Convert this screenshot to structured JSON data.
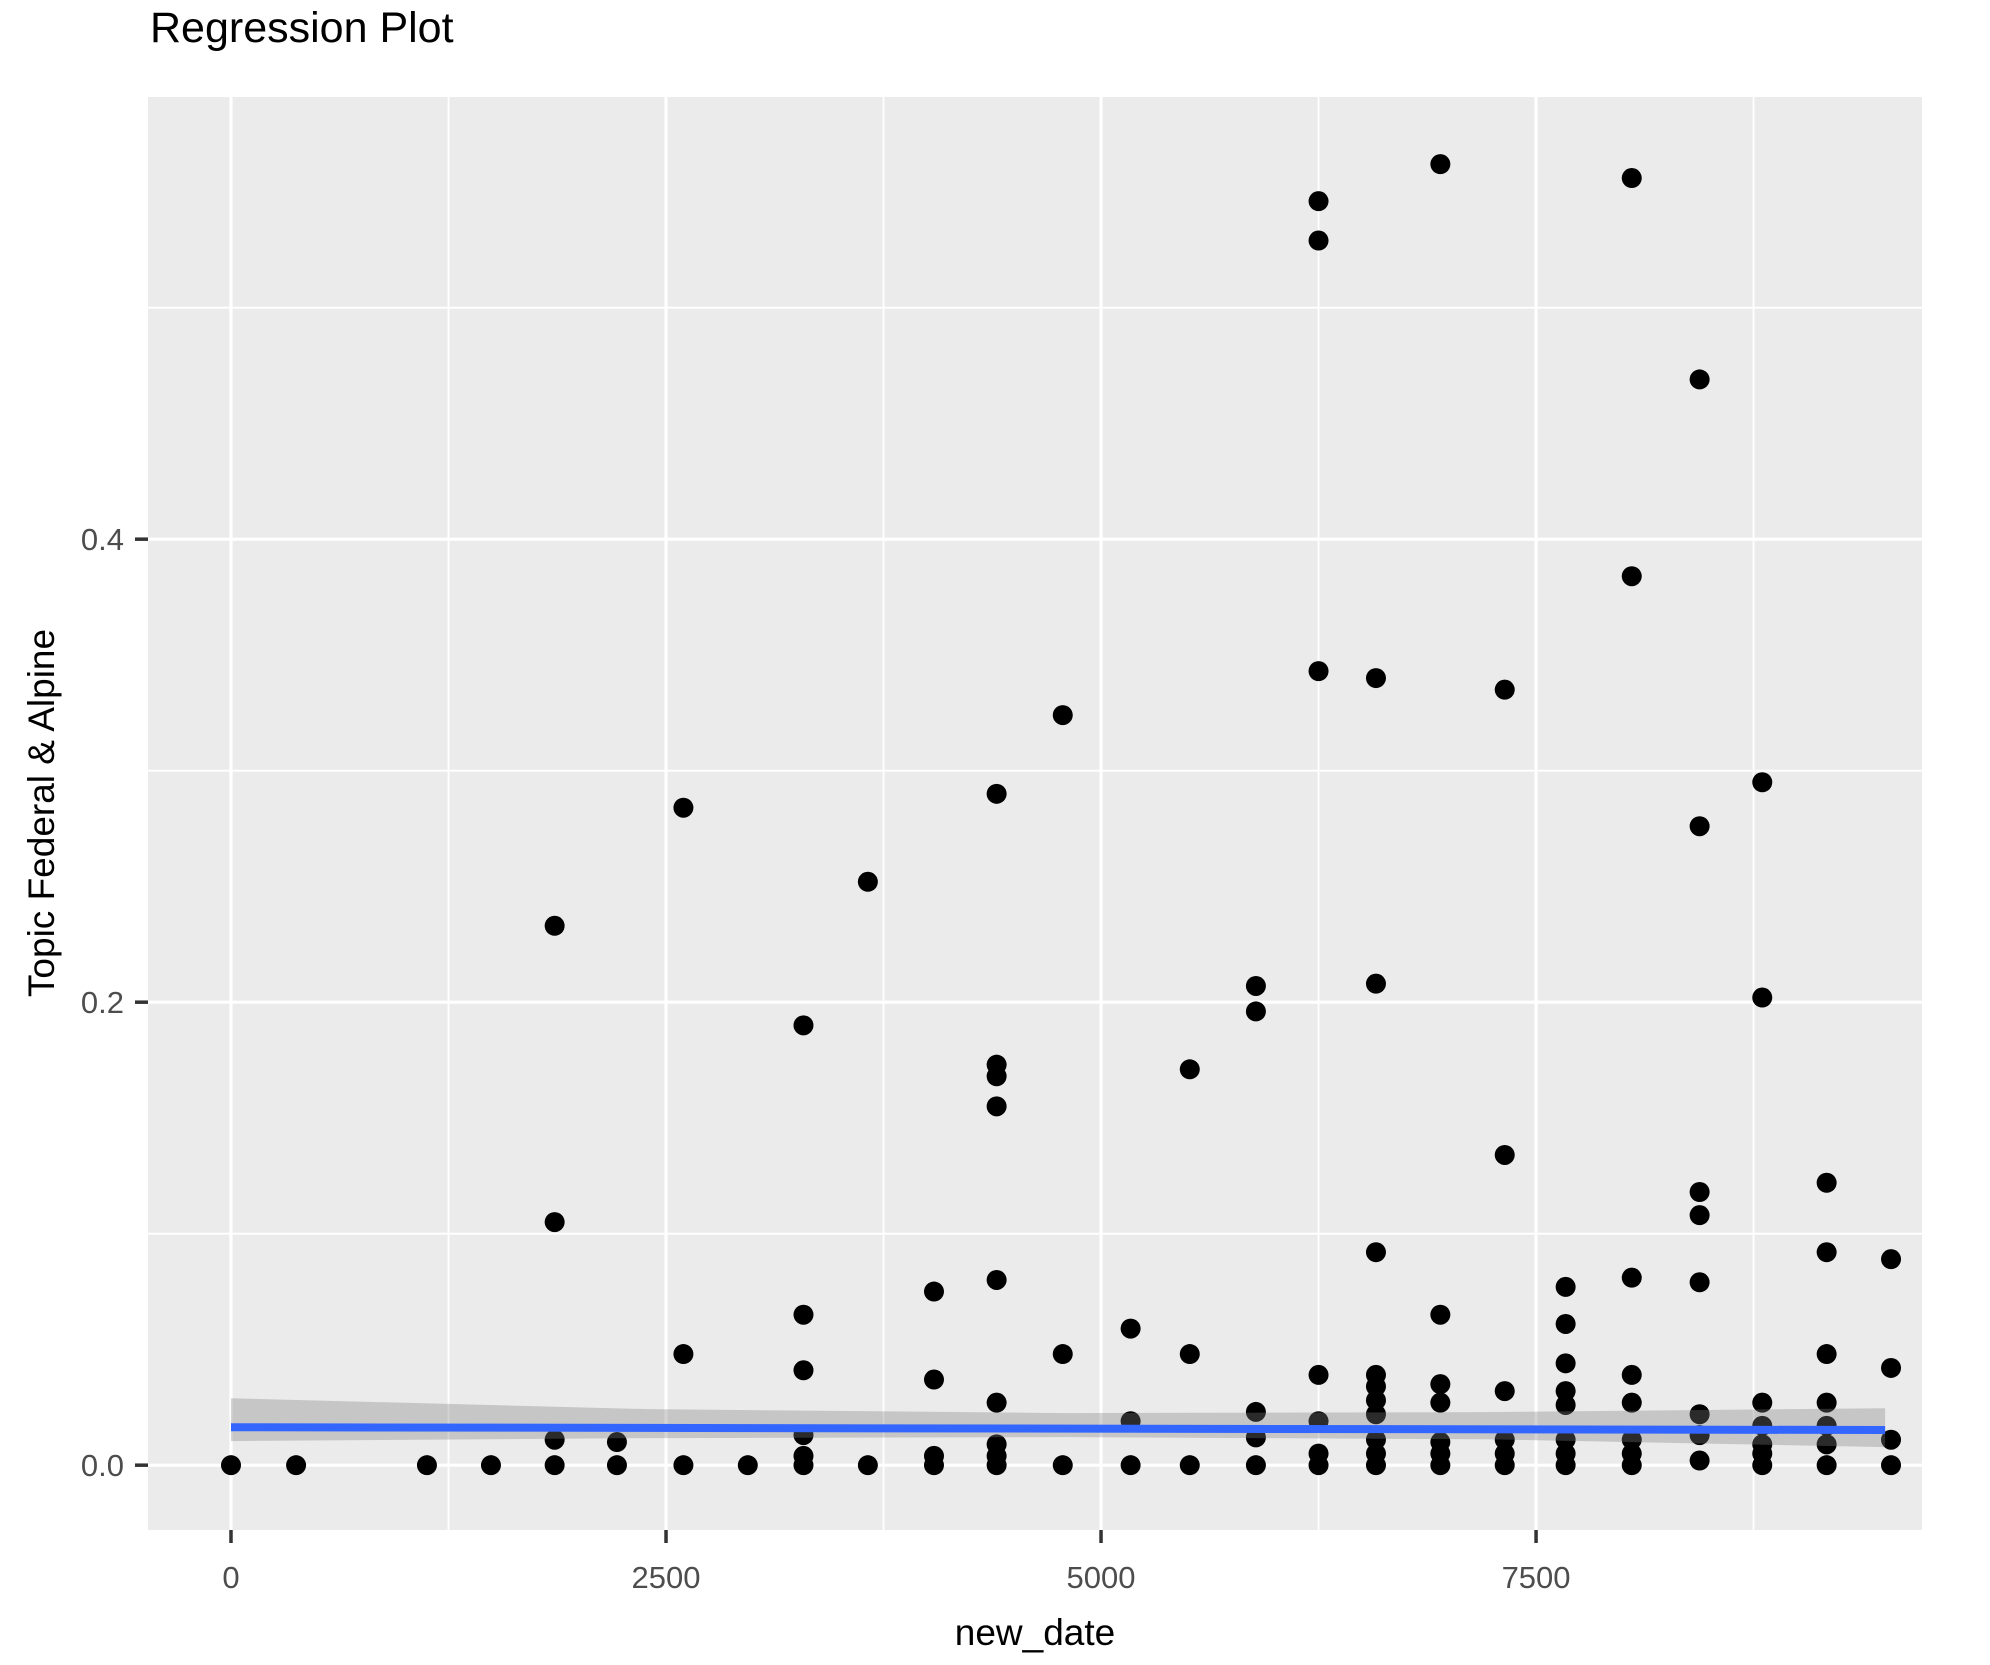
{
  "header": {
    "title": "Regression Plot"
  },
  "chart_data": {
    "type": "scatter",
    "title": "Regression Plot",
    "xlabel": "new_date",
    "ylabel": "Topic Federal & Alpine",
    "legend_position": "none",
    "grid": true,
    "xlim": [
      -477,
      9718
    ],
    "ylim": [
      -0.028,
      0.591
    ],
    "x_ticks": [
      {
        "value": 0,
        "label": "0"
      },
      {
        "value": 2500,
        "label": "2500"
      },
      {
        "value": 5000,
        "label": "5000"
      },
      {
        "value": 7500,
        "label": "7500"
      }
    ],
    "y_ticks": [
      {
        "value": 0.0,
        "label": "0.0"
      },
      {
        "value": 0.2,
        "label": "0.2"
      },
      {
        "value": 0.4,
        "label": "0.4"
      }
    ],
    "x_minor_ticks": [
      1250,
      3750,
      6250,
      8750
    ],
    "y_minor_ticks": [
      0.1,
      0.3,
      0.5
    ],
    "colors": {
      "panel_background": "#EBEBEB",
      "grid_line": "#FFFFFF",
      "point": "#000000",
      "regression_line": "#3366FF",
      "confidence_band": "rgba(125,125,125,0.34)",
      "tick_label": "#4D4D4D",
      "tick_mark": "#333333"
    },
    "point_radius": 10,
    "points": [
      [
        0,
        0.0
      ],
      [
        374,
        0.0
      ],
      [
        1126,
        0.0
      ],
      [
        1494,
        0.0
      ],
      [
        1860,
        0.233
      ],
      [
        1860,
        0.105
      ],
      [
        1860,
        0.011
      ],
      [
        1860,
        0.0
      ],
      [
        2218,
        0.01
      ],
      [
        2218,
        0.0
      ],
      [
        2600,
        0.284
      ],
      [
        2600,
        0.048
      ],
      [
        2600,
        0.0
      ],
      [
        2970,
        0.0
      ],
      [
        3290,
        0.19
      ],
      [
        3290,
        0.065
      ],
      [
        3290,
        0.041
      ],
      [
        3290,
        0.013
      ],
      [
        3290,
        0.004
      ],
      [
        3290,
        0.0
      ],
      [
        3660,
        0.252
      ],
      [
        3660,
        0.0
      ],
      [
        4040,
        0.075
      ],
      [
        4040,
        0.037
      ],
      [
        4040,
        0.004
      ],
      [
        4040,
        0.0
      ],
      [
        4400,
        0.29
      ],
      [
        4400,
        0.173
      ],
      [
        4400,
        0.168
      ],
      [
        4400,
        0.155
      ],
      [
        4400,
        0.08
      ],
      [
        4400,
        0.027
      ],
      [
        4400,
        0.009
      ],
      [
        4400,
        0.004
      ],
      [
        4400,
        0.0
      ],
      [
        4780,
        0.324
      ],
      [
        4780,
        0.048
      ],
      [
        4780,
        0.0
      ],
      [
        5170,
        0.059
      ],
      [
        5170,
        0.019
      ],
      [
        5170,
        0.0
      ],
      [
        5510,
        0.171
      ],
      [
        5510,
        0.048
      ],
      [
        5510,
        0.0
      ],
      [
        5890,
        0.207
      ],
      [
        5890,
        0.196
      ],
      [
        5890,
        0.023
      ],
      [
        5890,
        0.012
      ],
      [
        5890,
        0.0
      ],
      [
        6250,
        0.546
      ],
      [
        6250,
        0.529
      ],
      [
        6250,
        0.343
      ],
      [
        6250,
        0.039
      ],
      [
        6250,
        0.019
      ],
      [
        6250,
        0.005
      ],
      [
        6250,
        0.0
      ],
      [
        6580,
        0.34
      ],
      [
        6580,
        0.208
      ],
      [
        6580,
        0.092
      ],
      [
        6580,
        0.039
      ],
      [
        6580,
        0.034
      ],
      [
        6580,
        0.028
      ],
      [
        6580,
        0.022
      ],
      [
        6580,
        0.011
      ],
      [
        6580,
        0.005
      ],
      [
        6580,
        0.0
      ],
      [
        6950,
        0.562
      ],
      [
        6950,
        0.065
      ],
      [
        6950,
        0.035
      ],
      [
        6950,
        0.027
      ],
      [
        6950,
        0.01
      ],
      [
        6950,
        0.005
      ],
      [
        6950,
        0.0
      ],
      [
        7320,
        0.335
      ],
      [
        7320,
        0.134
      ],
      [
        7320,
        0.032
      ],
      [
        7320,
        0.011
      ],
      [
        7320,
        0.005
      ],
      [
        7320,
        0.0
      ],
      [
        7670,
        0.077
      ],
      [
        7670,
        0.061
      ],
      [
        7670,
        0.044
      ],
      [
        7670,
        0.032
      ],
      [
        7670,
        0.026
      ],
      [
        7670,
        0.011
      ],
      [
        7670,
        0.005
      ],
      [
        7670,
        0.0
      ],
      [
        8050,
        0.556
      ],
      [
        8050,
        0.384
      ],
      [
        8050,
        0.081
      ],
      [
        8050,
        0.039
      ],
      [
        8050,
        0.027
      ],
      [
        8050,
        0.011
      ],
      [
        8050,
        0.005
      ],
      [
        8050,
        0.0
      ],
      [
        8440,
        0.469
      ],
      [
        8440,
        0.276
      ],
      [
        8440,
        0.118
      ],
      [
        8440,
        0.108
      ],
      [
        8440,
        0.079
      ],
      [
        8440,
        0.022
      ],
      [
        8440,
        0.013
      ],
      [
        8440,
        0.002
      ],
      [
        8800,
        0.295
      ],
      [
        8800,
        0.202
      ],
      [
        8800,
        0.027
      ],
      [
        8800,
        0.017
      ],
      [
        8800,
        0.009
      ],
      [
        8800,
        0.005
      ],
      [
        8800,
        0.0
      ],
      [
        9170,
        0.122
      ],
      [
        9170,
        0.092
      ],
      [
        9170,
        0.048
      ],
      [
        9170,
        0.027
      ],
      [
        9170,
        0.017
      ],
      [
        9170,
        0.009
      ],
      [
        9170,
        0.0
      ],
      [
        9540,
        0.089
      ],
      [
        9540,
        0.042
      ],
      [
        9540,
        0.011
      ],
      [
        9540,
        0.0
      ]
    ],
    "regression_line": {
      "x": [
        0,
        9506
      ],
      "y": [
        0.0164,
        0.0152
      ],
      "stroke_width": 8
    },
    "confidence_band": {
      "upper": [
        [
          0,
          0.0289
        ],
        [
          2400,
          0.0242
        ],
        [
          4800,
          0.0225
        ],
        [
          7200,
          0.0229
        ],
        [
          9506,
          0.0246
        ]
      ],
      "lower": [
        [
          0,
          0.0104
        ],
        [
          2400,
          0.0117
        ],
        [
          4800,
          0.0121
        ],
        [
          7200,
          0.0112
        ],
        [
          9506,
          0.0078
        ]
      ]
    }
  }
}
